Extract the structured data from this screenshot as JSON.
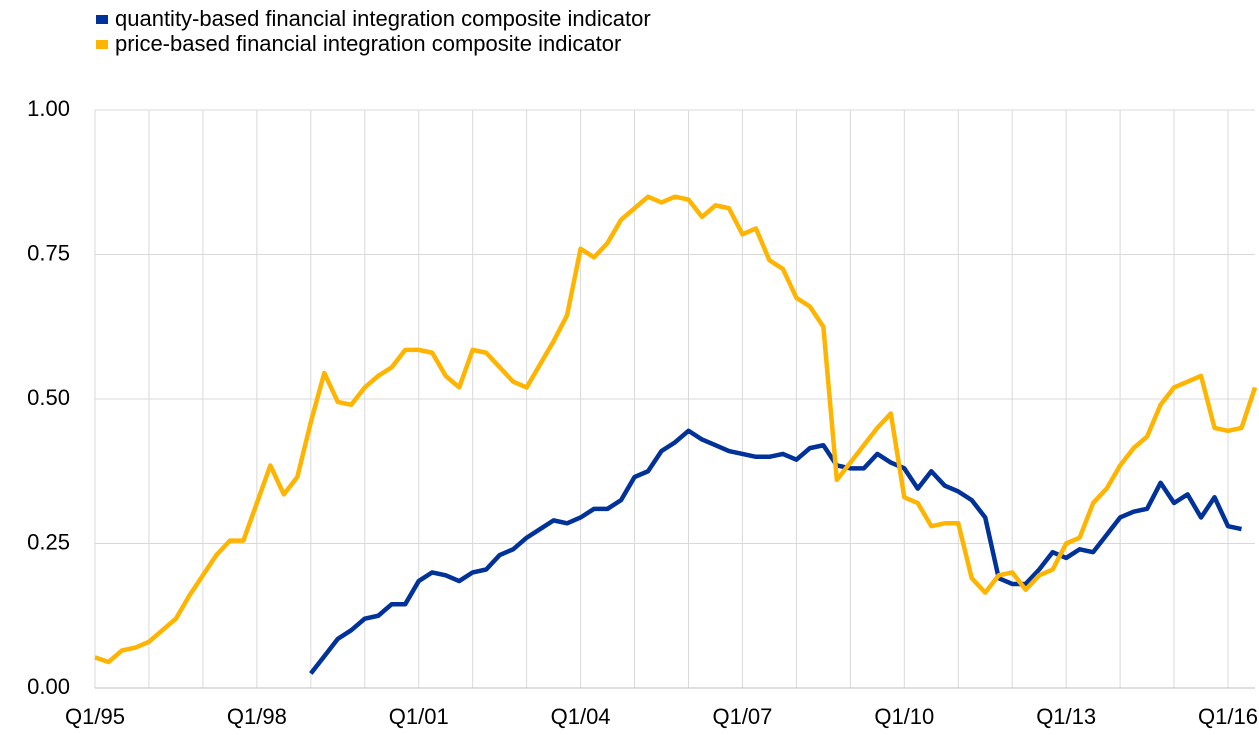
{
  "chart_data": {
    "type": "line",
    "categories": [
      "Q1/95",
      null,
      null,
      null,
      null,
      null,
      null,
      null,
      null,
      null,
      null,
      null,
      "Q1/98",
      null,
      null,
      null,
      null,
      null,
      null,
      null,
      null,
      null,
      null,
      null,
      "Q1/01",
      null,
      null,
      null,
      null,
      null,
      null,
      null,
      null,
      null,
      null,
      null,
      "Q1/04",
      null,
      null,
      null,
      null,
      null,
      null,
      null,
      null,
      null,
      null,
      null,
      "Q1/07",
      null,
      null,
      null,
      null,
      null,
      null,
      null,
      null,
      null,
      null,
      null,
      "Q1/10",
      null,
      null,
      null,
      null,
      null,
      null,
      null,
      null,
      null,
      null,
      null,
      "Q1/13",
      null,
      null,
      null,
      null,
      null,
      null,
      null,
      null,
      null,
      null,
      null,
      "Q1/16",
      null,
      null
    ],
    "series": [
      {
        "name": "quantity-based financial integration composite indicator",
        "color": "#003299",
        "values": [
          null,
          null,
          null,
          null,
          null,
          null,
          null,
          null,
          null,
          null,
          null,
          null,
          null,
          null,
          null,
          null,
          0.025,
          0.055,
          0.085,
          0.1,
          0.12,
          0.125,
          0.145,
          0.145,
          0.185,
          0.2,
          0.195,
          0.185,
          0.2,
          0.205,
          0.23,
          0.24,
          0.26,
          0.275,
          0.29,
          0.285,
          0.295,
          0.31,
          0.31,
          0.325,
          0.365,
          0.375,
          0.41,
          0.425,
          0.445,
          0.43,
          0.42,
          0.41,
          0.405,
          0.4,
          0.4,
          0.405,
          0.395,
          0.415,
          0.42,
          0.385,
          0.38,
          0.38,
          0.405,
          0.39,
          0.38,
          0.345,
          0.375,
          0.35,
          0.34,
          0.325,
          0.295,
          0.19,
          0.18,
          0.18,
          0.205,
          0.235,
          0.225,
          0.24,
          0.235,
          0.265,
          0.295,
          0.305,
          0.31,
          0.355,
          0.32,
          0.335,
          0.295,
          0.33,
          0.28,
          0.275,
          null
        ]
      },
      {
        "name": "price-based financial integration composite indicator",
        "color": "#FFB400",
        "values": [
          0.053,
          0.045,
          0.065,
          0.07,
          0.08,
          0.1,
          0.12,
          0.16,
          0.195,
          0.23,
          0.255,
          0.255,
          0.32,
          0.385,
          0.335,
          0.365,
          0.46,
          0.545,
          0.495,
          0.49,
          0.52,
          0.54,
          0.555,
          0.585,
          0.585,
          0.58,
          0.54,
          0.52,
          0.585,
          0.58,
          0.555,
          0.53,
          0.52,
          0.56,
          0.6,
          0.645,
          0.76,
          0.745,
          0.77,
          0.81,
          0.83,
          0.85,
          0.84,
          0.85,
          0.845,
          0.815,
          0.835,
          0.83,
          0.785,
          0.795,
          0.74,
          0.725,
          0.675,
          0.66,
          0.625,
          0.36,
          0.39,
          0.42,
          0.45,
          0.475,
          0.33,
          0.32,
          0.28,
          0.285,
          0.285,
          0.19,
          0.165,
          0.195,
          0.2,
          0.17,
          0.195,
          0.205,
          0.25,
          0.26,
          0.32,
          0.345,
          0.385,
          0.415,
          0.435,
          0.49,
          0.52,
          0.53,
          0.54,
          0.45,
          0.445,
          0.45,
          0.52
        ]
      }
    ],
    "ylim": [
      0,
      1
    ],
    "yticks": [
      {
        "value": 0,
        "label": "0.00"
      },
      0.25,
      {
        "value": 0.5,
        "label": "0.50"
      },
      0.75,
      {
        "value": 1,
        "label": "1.00"
      }
    ],
    "grid": true,
    "legend": "top-left"
  }
}
